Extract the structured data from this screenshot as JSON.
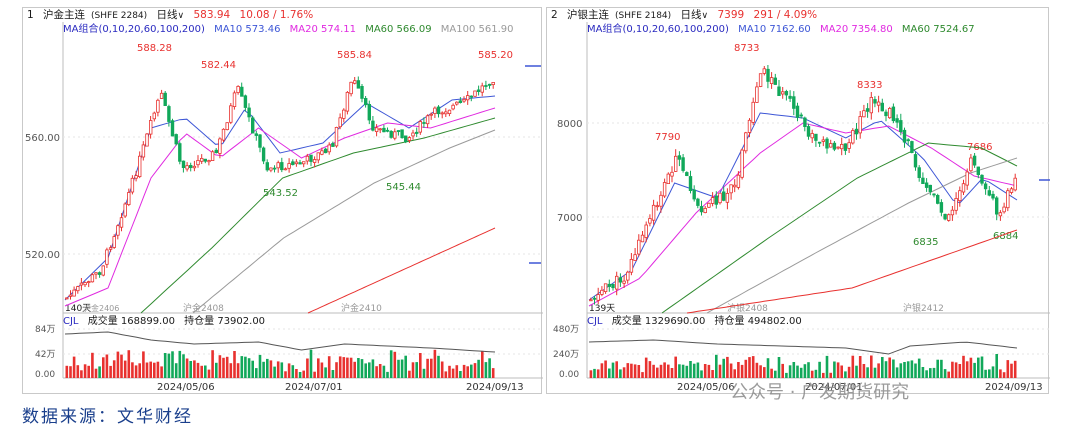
{
  "colors": {
    "up": "#e8312f",
    "down": "#11a85a",
    "ma5": "#222222",
    "ma10": "#3d56d6",
    "ma20": "#e02ae0",
    "ma60": "#2f8a2f",
    "ma100": "#9a9a9a",
    "ma200": "#e8312f",
    "oi": "#555555",
    "title": "#1b1b1b",
    "gray": "#777777",
    "blue": "#2a2ac0"
  },
  "gold": {
    "index": "1",
    "name": "沪金主连",
    "code": "(SHFE 2284)",
    "period": "日线",
    "arrow": "∨",
    "price": "583.94",
    "change": "10.08 / 1.76%",
    "ma": {
      "label": "MA组合(0,10,20,60,100,200)",
      "ma10": "MA10 573.46",
      "ma20": "MA20 574.11",
      "ma60": "MA60 566.09",
      "ma100": "MA100 561.90"
    },
    "vol": {
      "cjl": "CJL",
      "volume": "成交量 168899.00",
      "oi": "持仓量 73902.00"
    },
    "ylabels": {
      "y560": "560.00",
      "y520": "520.00"
    },
    "volylabels": {
      "a": "84万",
      "b": "42万",
      "c": "0.00"
    },
    "xlabels": {
      "a": "2024/05/06",
      "b": "2024/07/01",
      "c": "2024/09/13"
    },
    "contracts": {
      "a": "140天",
      "b": "沪金2406",
      "c": "沪金2408",
      "d": "沪金2410"
    },
    "annotations": {
      "h1": "588.28",
      "h2": "582.44",
      "h3": "585.84",
      "h4": "585.20",
      "l1": "543.52",
      "l2": "545.44"
    }
  },
  "silver": {
    "index": "2",
    "name": "沪银主连",
    "code": "(SHFE 2184)",
    "period": "日线",
    "arrow": "∨",
    "price": "7399",
    "change": "291 / 4.09%",
    "ma": {
      "label": "MA组合(0,10,20,60,100,200)",
      "ma10": "MA10 7162.60",
      "ma20": "MA20 7354.80",
      "ma60": "MA60 7524.67"
    },
    "vol": {
      "cjl": "CJL",
      "volume": "成交量 1329690.00",
      "oi": "持仓量 494802.00"
    },
    "ylabels": {
      "y8000": "8000",
      "y7000": "7000"
    },
    "volylabels": {
      "a": "480万",
      "b": "240万",
      "c": "0.00"
    },
    "xlabels": {
      "a": "2024/05/06",
      "b": "2024/07/01",
      "c": "2024/09/13"
    },
    "contracts": {
      "a": "139天",
      "b": "沪银2408",
      "c": "沪银2412"
    },
    "annotations": {
      "h1": "8733",
      "h2": "7790",
      "h3": "8333",
      "h4": "7686",
      "l1": "6835",
      "l2": "6884"
    }
  },
  "source": "数据来源：文华财经",
  "watermark": "公众号 · 广发期货研究"
}
